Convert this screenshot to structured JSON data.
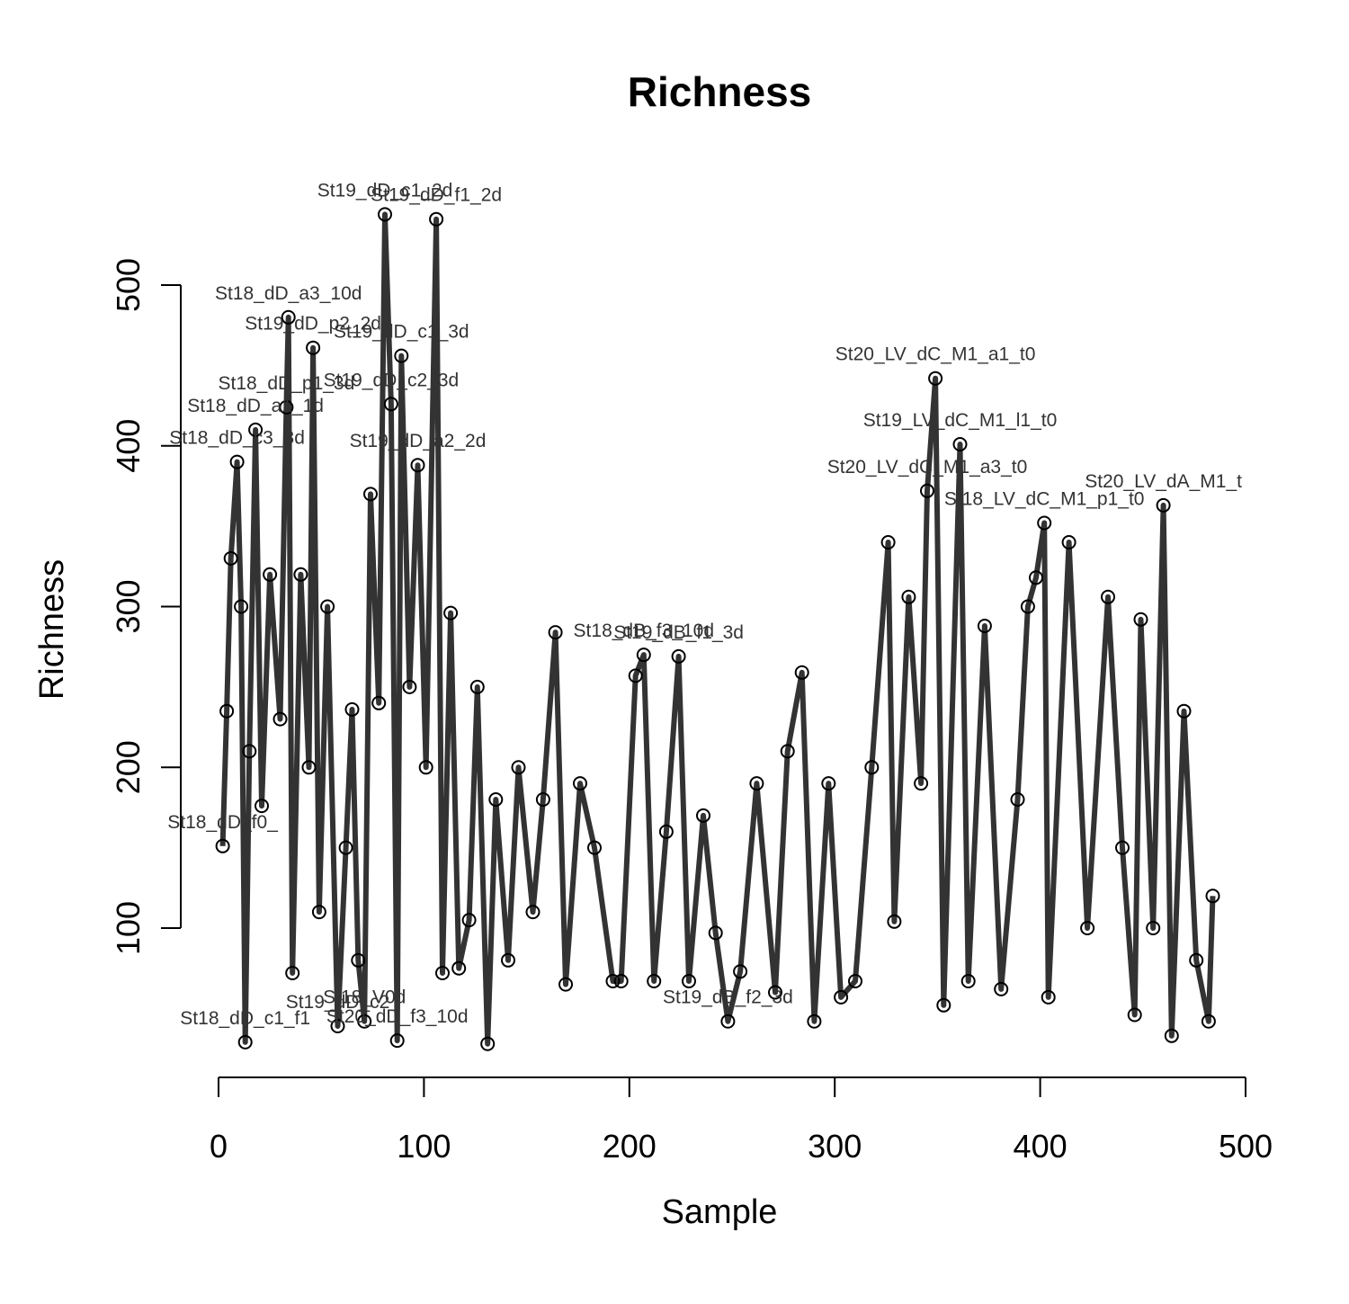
{
  "chart_data": {
    "type": "line",
    "title": "Richness",
    "xlabel": "Sample",
    "ylabel": "Richness",
    "xlim": [
      0,
      500
    ],
    "ylim": [
      100,
      500
    ],
    "x_ticks": [
      0,
      100,
      200,
      300,
      400,
      500
    ],
    "y_ticks": [
      100,
      200,
      300,
      400,
      500
    ],
    "grid": false,
    "legend": "none",
    "line_color": "#333333",
    "marker": "open-circle",
    "series": [
      {
        "points": [
          {
            "x": 2,
            "y": 151,
            "label": "St18_dD_f0_"
          },
          {
            "x": 4,
            "y": 235,
            "label": ""
          },
          {
            "x": 6,
            "y": 330,
            "label": ""
          },
          {
            "x": 9,
            "y": 390,
            "label": "St18_dD_c3_3d"
          },
          {
            "x": 11,
            "y": 300,
            "label": ""
          },
          {
            "x": 13,
            "y": 29,
            "label": "St18_dD_c1_f1"
          },
          {
            "x": 15,
            "y": 210,
            "label": ""
          },
          {
            "x": 18,
            "y": 410,
            "label": "St18_dD_a1_1d"
          },
          {
            "x": 21,
            "y": 176,
            "label": ""
          },
          {
            "x": 25,
            "y": 320,
            "label": ""
          },
          {
            "x": 30,
            "y": 230,
            "label": ""
          },
          {
            "x": 33,
            "y": 424,
            "label": "St18_dD_p1_3d"
          },
          {
            "x": 34,
            "y": 480,
            "label": "St18_dD_a3_10d"
          },
          {
            "x": 36,
            "y": 72,
            "label": ""
          },
          {
            "x": 40,
            "y": 320,
            "label": ""
          },
          {
            "x": 44,
            "y": 200,
            "label": ""
          },
          {
            "x": 46,
            "y": 461,
            "label": "St19_dD_p2_2d"
          },
          {
            "x": 49,
            "y": 110,
            "label": ""
          },
          {
            "x": 53,
            "y": 300,
            "label": ""
          },
          {
            "x": 58,
            "y": 39,
            "label": "St19_dD_c2"
          },
          {
            "x": 62,
            "y": 150,
            "label": ""
          },
          {
            "x": 65,
            "y": 236,
            "label": ""
          },
          {
            "x": 68,
            "y": 80,
            "label": ""
          },
          {
            "x": 71,
            "y": 42,
            "label": "St18_V0d"
          },
          {
            "x": 74,
            "y": 370,
            "label": ""
          },
          {
            "x": 78,
            "y": 240,
            "label": ""
          },
          {
            "x": 81,
            "y": 544,
            "label": "St19_dD_c1_2d"
          },
          {
            "x": 84,
            "y": 426,
            "label": "St19_dD_c2_3d"
          },
          {
            "x": 87,
            "y": 30,
            "label": "St20_dD_f3_10d"
          },
          {
            "x": 89,
            "y": 456,
            "label": "St19_dD_c1_3d"
          },
          {
            "x": 93,
            "y": 250,
            "label": ""
          },
          {
            "x": 97,
            "y": 388,
            "label": "St19_dD_a2_2d"
          },
          {
            "x": 101,
            "y": 200,
            "label": ""
          },
          {
            "x": 106,
            "y": 541,
            "label": "St19_dD_f1_2d"
          },
          {
            "x": 109,
            "y": 72,
            "label": ""
          },
          {
            "x": 113,
            "y": 296,
            "label": ""
          },
          {
            "x": 117,
            "y": 75,
            "label": ""
          },
          {
            "x": 122,
            "y": 105,
            "label": ""
          },
          {
            "x": 126,
            "y": 250,
            "label": ""
          },
          {
            "x": 131,
            "y": 28,
            "label": ""
          },
          {
            "x": 135,
            "y": 180,
            "label": ""
          },
          {
            "x": 141,
            "y": 80,
            "label": ""
          },
          {
            "x": 146,
            "y": 200,
            "label": ""
          },
          {
            "x": 153,
            "y": 110,
            "label": ""
          },
          {
            "x": 158,
            "y": 180,
            "label": ""
          },
          {
            "x": 164,
            "y": 284,
            "label": ""
          },
          {
            "x": 169,
            "y": 65,
            "label": ""
          },
          {
            "x": 176,
            "y": 190,
            "label": ""
          },
          {
            "x": 183,
            "y": 150,
            "label": ""
          },
          {
            "x": 192,
            "y": 67,
            "label": ""
          },
          {
            "x": 196,
            "y": 67,
            "label": ""
          },
          {
            "x": 203,
            "y": 257,
            "label": ""
          },
          {
            "x": 207,
            "y": 270,
            "label": "St18_dB_f3_10d"
          },
          {
            "x": 212,
            "y": 67,
            "label": ""
          },
          {
            "x": 218,
            "y": 160,
            "label": ""
          },
          {
            "x": 224,
            "y": 269,
            "label": "St19_dB_f1_3d"
          },
          {
            "x": 229,
            "y": 67,
            "label": ""
          },
          {
            "x": 236,
            "y": 170,
            "label": ""
          },
          {
            "x": 242,
            "y": 97,
            "label": ""
          },
          {
            "x": 248,
            "y": 42,
            "label": "St19_dB_f2_3d"
          },
          {
            "x": 254,
            "y": 73,
            "label": ""
          },
          {
            "x": 262,
            "y": 190,
            "label": ""
          },
          {
            "x": 271,
            "y": 60,
            "label": ""
          },
          {
            "x": 277,
            "y": 210,
            "label": ""
          },
          {
            "x": 284,
            "y": 259,
            "label": ""
          },
          {
            "x": 290,
            "y": 42,
            "label": ""
          },
          {
            "x": 297,
            "y": 190,
            "label": ""
          },
          {
            "x": 303,
            "y": 57,
            "label": ""
          },
          {
            "x": 310,
            "y": 67,
            "label": ""
          },
          {
            "x": 318,
            "y": 200,
            "label": ""
          },
          {
            "x": 326,
            "y": 340,
            "label": ""
          },
          {
            "x": 329,
            "y": 104,
            "label": ""
          },
          {
            "x": 336,
            "y": 306,
            "label": ""
          },
          {
            "x": 342,
            "y": 190,
            "label": ""
          },
          {
            "x": 345,
            "y": 372,
            "label": "St20_LV_dC_M1_a3_t0"
          },
          {
            "x": 349,
            "y": 442,
            "label": "St20_LV_dC_M1_a1_t0"
          },
          {
            "x": 353,
            "y": 52,
            "label": ""
          },
          {
            "x": 361,
            "y": 401,
            "label": "St19_LV_dC_M1_l1_t0"
          },
          {
            "x": 365,
            "y": 67,
            "label": ""
          },
          {
            "x": 373,
            "y": 288,
            "label": ""
          },
          {
            "x": 381,
            "y": 62,
            "label": ""
          },
          {
            "x": 389,
            "y": 180,
            "label": ""
          },
          {
            "x": 394,
            "y": 300,
            "label": ""
          },
          {
            "x": 398,
            "y": 318,
            "label": ""
          },
          {
            "x": 402,
            "y": 352,
            "label": "St18_LV_dC_M1_p1_t0"
          },
          {
            "x": 404,
            "y": 57,
            "label": ""
          },
          {
            "x": 414,
            "y": 340,
            "label": ""
          },
          {
            "x": 423,
            "y": 100,
            "label": ""
          },
          {
            "x": 433,
            "y": 306,
            "label": ""
          },
          {
            "x": 440,
            "y": 150,
            "label": ""
          },
          {
            "x": 446,
            "y": 46,
            "label": ""
          },
          {
            "x": 449,
            "y": 292,
            "label": ""
          },
          {
            "x": 455,
            "y": 100,
            "label": ""
          },
          {
            "x": 460,
            "y": 363,
            "label": "St20_LV_dA_M1_t"
          },
          {
            "x": 464,
            "y": 33,
            "label": ""
          },
          {
            "x": 470,
            "y": 235,
            "label": ""
          },
          {
            "x": 476,
            "y": 80,
            "label": ""
          },
          {
            "x": 482,
            "y": 42,
            "label": ""
          },
          {
            "x": 484,
            "y": 120,
            "label": ""
          }
        ]
      }
    ]
  }
}
